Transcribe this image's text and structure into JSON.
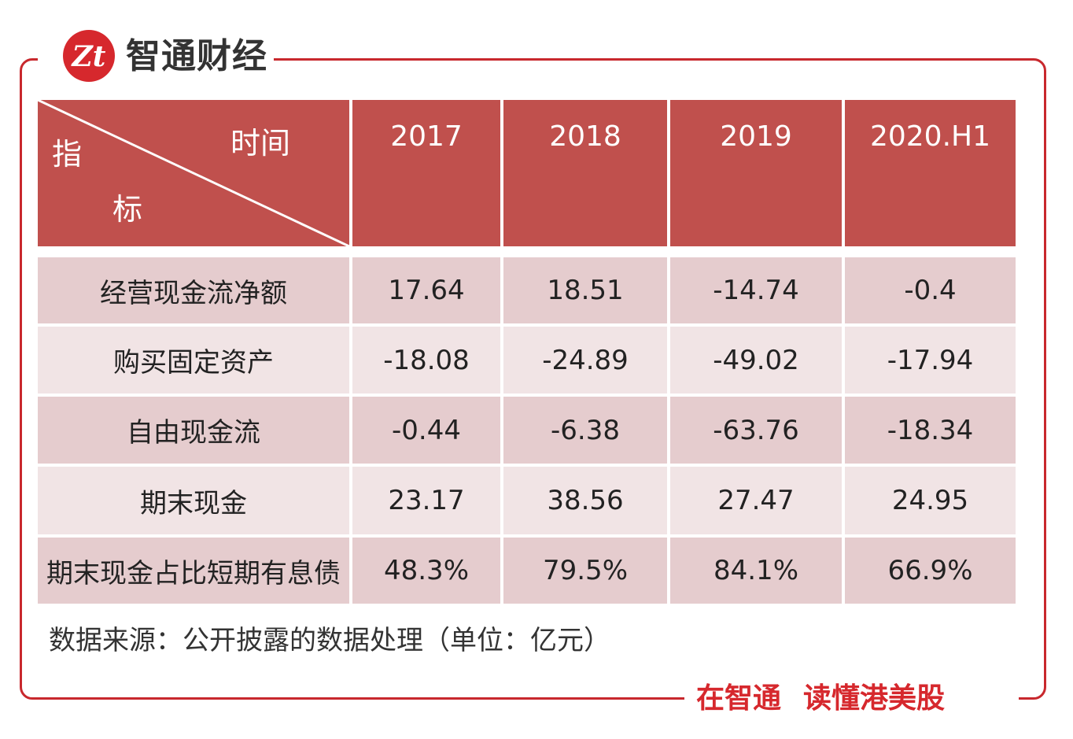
{
  "brand": {
    "name": "智通财经",
    "slogan_a": "在智通",
    "slogan_b": "读懂港美股",
    "accent": "#c0504d",
    "logo_red": "#d6282d"
  },
  "table": {
    "header": {
      "time_label": "时间",
      "index_label_1": "指",
      "index_label_2": "标"
    },
    "columns": [
      "2017",
      "2018",
      "2019",
      "2020.H1"
    ],
    "rows": [
      {
        "label": "经营现金流净额",
        "values": [
          "17.64",
          "18.51",
          "-14.74",
          "-0.4"
        ]
      },
      {
        "label": "购买固定资产",
        "values": [
          "-18.08",
          "-24.89",
          "-49.02",
          "-17.94"
        ]
      },
      {
        "label": "自由现金流",
        "values": [
          "-0.44",
          "-6.38",
          "-63.76",
          "-18.34"
        ]
      },
      {
        "label": "期末现金",
        "values": [
          "23.17",
          "38.56",
          "27.47",
          "24.95"
        ]
      },
      {
        "label": "期末现金占比短期有息债",
        "values": [
          "48.3%",
          "79.5%",
          "84.1%",
          "66.9%"
        ]
      }
    ]
  },
  "footer": {
    "source": "数据来源：公开披露的数据处理（单位：亿元）"
  }
}
